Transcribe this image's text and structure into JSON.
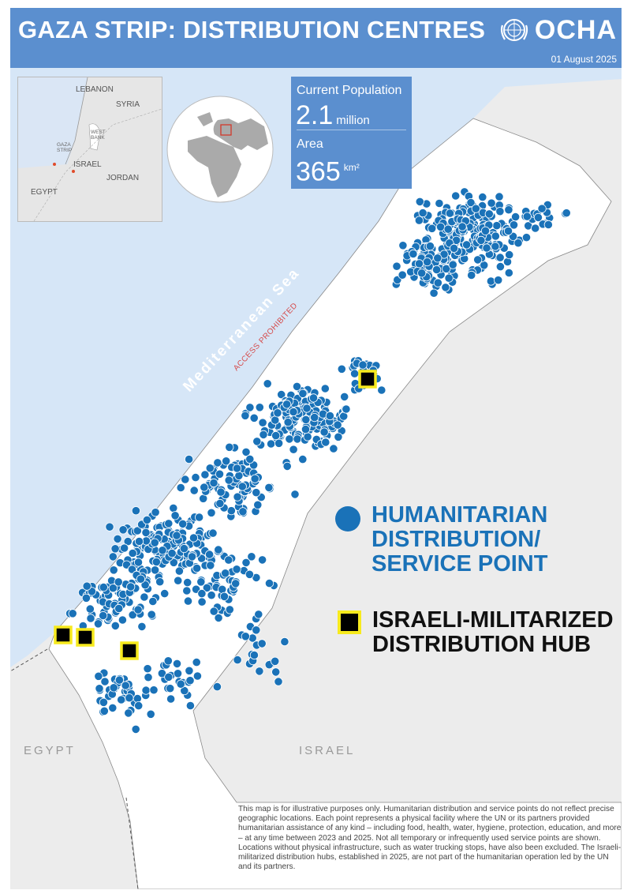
{
  "header": {
    "title": "GAZA STRIP: DISTRIBUTION CENTRES",
    "logo_text": "OCHA",
    "date": "01 August 2025"
  },
  "inset": {
    "labels": [
      "LEBANON",
      "SYRIA",
      "WEST BANK",
      "GAZA STRIP",
      "ISRAEL",
      "JORDAN",
      "EGYPT"
    ]
  },
  "stats": {
    "population_label": "Current Population",
    "population_value": "2.1",
    "population_unit": "million",
    "area_label": "Area",
    "area_value": "365",
    "area_unit": "km²"
  },
  "map": {
    "sea_label": "Mediterranean Sea",
    "sea_note": "ACCESS PROHIBITED",
    "egypt_label": "EGYPT",
    "israel_label": "ISRAEL",
    "colors": {
      "sea": "#d6e6f7",
      "land": "#ececec",
      "strip": "#ffffff",
      "point": "#1a72b8",
      "hub": "#000000",
      "hub_outline": "#f7ea1e"
    },
    "hub_count": 4
  },
  "legend": {
    "humanitarian": [
      "HUMANITARIAN",
      "DISTRIBUTION/",
      "SERVICE POINT"
    ],
    "israeli": [
      "ISRAELI-MILITARIZED",
      "DISTRIBUTION HUB"
    ]
  },
  "disclaimer": "This map is for illustrative purposes only. Humanitarian distribution and service points do not reflect precise geographic locations. Each point represents a physical facility where the UN or its partners provided humanitarian assistance of any kind – including food, health, water, hygiene, protection, education, and more – at any time between 2023 and 2025. Not all temporary or infrequently used service points are shown. Locations without physical infrastructure, such as water trucking stops, have also been excluded. The Israeli-militarized distribution hubs, established in 2025, are not part of the humanitarian operation led by the UN and its partners."
}
